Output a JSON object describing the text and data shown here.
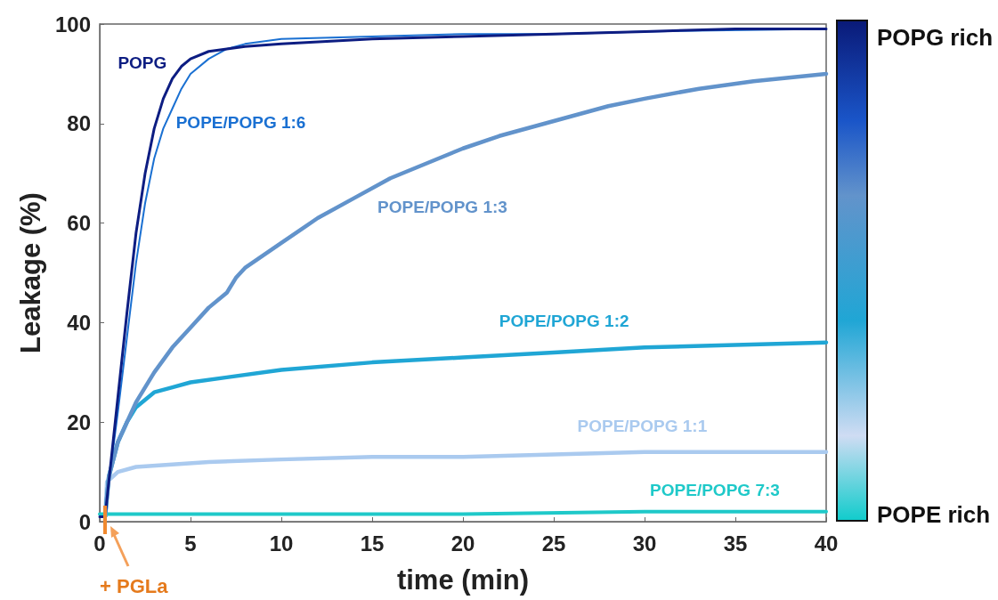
{
  "chart_data": {
    "type": "line",
    "xlabel": "time (min)",
    "ylabel": "Leakage (%)",
    "xlim": [
      0,
      40
    ],
    "xticks": [
      0,
      5,
      10,
      15,
      20,
      25,
      30,
      35,
      40
    ],
    "ylim": [
      0,
      100
    ],
    "yticks": [
      0,
      20,
      40,
      60,
      80,
      100
    ],
    "grid": false,
    "legend": false,
    "marker": "none",
    "line_style": "solid",
    "annotations": [
      "POPG rich",
      "POPE rich",
      "+ PGLa"
    ],
    "series": [
      {
        "name": "POPG",
        "color": "#0d1d82",
        "x": [
          0,
          0.3,
          0.5,
          1,
          1.5,
          2,
          2.5,
          3,
          3.5,
          4,
          4.5,
          5,
          6,
          7,
          8,
          10,
          15,
          20,
          25,
          30,
          35,
          40
        ],
        "values": [
          1,
          1,
          8,
          25,
          42,
          58,
          70,
          79,
          85,
          89,
          91.5,
          93,
          94.5,
          95,
          95.5,
          96,
          97,
          97.5,
          98,
          98.5,
          99,
          99
        ]
      },
      {
        "name": "POPE/POPG 1:6",
        "color": "#1a70d2",
        "x": [
          0.3,
          0.5,
          1,
          1.5,
          2,
          2.5,
          3,
          3.5,
          4,
          4.5,
          5,
          6,
          7,
          8,
          10,
          15,
          20,
          25,
          30,
          40
        ],
        "values": [
          1,
          8,
          22,
          37,
          52,
          64,
          73,
          79,
          83,
          87,
          90,
          93,
          95,
          96,
          97,
          97.5,
          98,
          98,
          98.5,
          99
        ]
      },
      {
        "name": "POPE/POPG 1:3",
        "color": "#6293cb",
        "x": [
          0.3,
          0.5,
          1,
          2,
          3,
          4,
          5,
          6,
          7,
          7.5,
          8,
          10,
          12,
          14,
          16,
          18,
          20,
          22,
          25,
          28,
          30,
          33,
          36,
          40
        ],
        "values": [
          1,
          9,
          16,
          24,
          30,
          35,
          39,
          43,
          46,
          49,
          51,
          56,
          61,
          65,
          69,
          72,
          75,
          77.5,
          80.5,
          83.5,
          85,
          87,
          88.5,
          90
        ]
      },
      {
        "name": "POPE/POPG 1:2",
        "color": "#20a6d5",
        "x": [
          0.3,
          0.5,
          1,
          1.5,
          2,
          3,
          4,
          5,
          7,
          10,
          15,
          20,
          25,
          30,
          35,
          40
        ],
        "values": [
          1,
          9,
          16,
          20,
          23,
          26,
          27,
          28,
          29,
          30.5,
          32,
          33,
          34,
          35,
          35.5,
          36
        ]
      },
      {
        "name": "POPE/POPG 1:1",
        "color": "#aacaef",
        "x": [
          0.3,
          0.4,
          1,
          2,
          4,
          6,
          10,
          15,
          20,
          25,
          30,
          35,
          40
        ],
        "values": [
          1,
          8,
          10,
          11,
          11.5,
          12,
          12.5,
          13,
          13,
          13.5,
          14,
          14,
          14
        ]
      },
      {
        "name": "POPE/POPG 7:3",
        "color": "#1fc9c9",
        "x": [
          0,
          5,
          10,
          20,
          30,
          40
        ],
        "values": [
          1.5,
          1.5,
          1.5,
          1.5,
          2,
          2
        ]
      }
    ]
  }
}
